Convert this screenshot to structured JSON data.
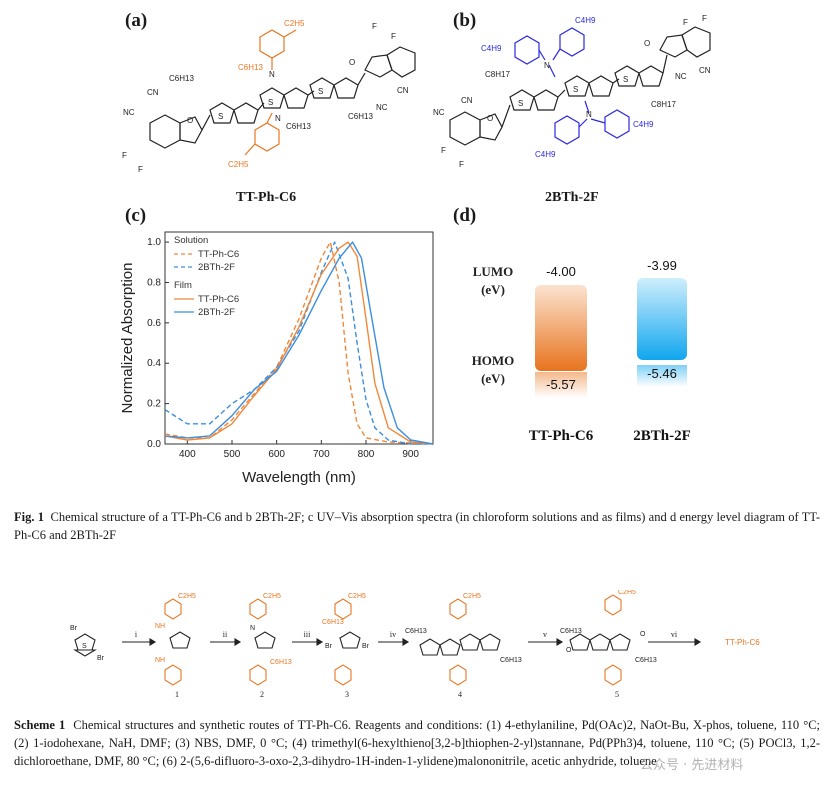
{
  "panel_a": {
    "label": "(a)",
    "molecule_name": "TT-Ph-C6",
    "atoms": {
      "c2h5": "C2H5",
      "c6h13": "C6H13",
      "n": "N",
      "s": "S",
      "o": "O",
      "f": "F",
      "cn": "CN",
      "nc": "NC"
    }
  },
  "panel_b": {
    "label": "(b)",
    "molecule_name": "2BTh-2F",
    "atoms": {
      "c4h9": "C4H9",
      "c8h17": "C8H17",
      "n": "N",
      "s": "S",
      "o": "O",
      "f": "F",
      "cn": "CN",
      "nc": "NC"
    }
  },
  "panel_c": {
    "label": "(c)",
    "legend": {
      "solution_title": "Solution",
      "film_title": "Film",
      "entries": [
        "TT-Ph-C6",
        "2BTh-2F",
        "TT-Ph-C6",
        "2BTh-2F"
      ]
    }
  },
  "panel_d": {
    "label": "(d)",
    "lumo_label": "LUMO",
    "homo_label": "HOMO",
    "unit": "(eV)",
    "materials": [
      {
        "name": "TT-Ph-C6",
        "lumo": "-4.00",
        "homo": "-5.57",
        "color": "#e87722"
      },
      {
        "name": "2BTh-2F",
        "lumo": "-3.99",
        "homo": "-5.46",
        "color": "#1aa7e8"
      }
    ]
  },
  "chart_data": {
    "type": "line",
    "title": "",
    "xlabel": "Wavelength (nm)",
    "ylabel": "Normalized Absorption",
    "xlim": [
      350,
      950
    ],
    "ylim": [
      0,
      1.05
    ],
    "xticks": [
      "400",
      "500",
      "600",
      "700",
      "800",
      "900"
    ],
    "yticks": [
      "0.0",
      "0.2",
      "0.4",
      "0.6",
      "0.8",
      "1.0"
    ],
    "series": [
      {
        "name": "TT-Ph-C6 (Solution)",
        "color": "#f0883a",
        "dash": true,
        "x": [
          350,
          400,
          450,
          500,
          550,
          600,
          650,
          700,
          720,
          740,
          760,
          780,
          800,
          850,
          950
        ],
        "y": [
          0.05,
          0.03,
          0.03,
          0.12,
          0.25,
          0.38,
          0.62,
          0.92,
          1.0,
          0.8,
          0.35,
          0.1,
          0.03,
          0.01,
          0.0
        ]
      },
      {
        "name": "2BTh-2F (Solution)",
        "color": "#3c8ee0",
        "dash": true,
        "x": [
          350,
          400,
          450,
          500,
          550,
          600,
          650,
          700,
          730,
          760,
          780,
          800,
          820,
          850,
          900,
          950
        ],
        "y": [
          0.17,
          0.1,
          0.1,
          0.2,
          0.27,
          0.38,
          0.56,
          0.85,
          1.0,
          0.82,
          0.5,
          0.22,
          0.08,
          0.02,
          0.0,
          0.0
        ]
      },
      {
        "name": "TT-Ph-C6 (Film)",
        "color": "#f0883a",
        "dash": false,
        "x": [
          350,
          400,
          450,
          500,
          550,
          600,
          650,
          700,
          740,
          760,
          780,
          800,
          820,
          850,
          900,
          950
        ],
        "y": [
          0.04,
          0.02,
          0.03,
          0.1,
          0.24,
          0.37,
          0.58,
          0.84,
          0.97,
          1.0,
          0.93,
          0.62,
          0.3,
          0.08,
          0.01,
          0.0
        ]
      },
      {
        "name": "2BTh-2F (Film)",
        "color": "#3c8ee0",
        "dash": false,
        "x": [
          350,
          400,
          450,
          500,
          550,
          600,
          650,
          700,
          740,
          770,
          790,
          810,
          840,
          870,
          900,
          950
        ],
        "y": [
          0.04,
          0.03,
          0.04,
          0.14,
          0.27,
          0.36,
          0.54,
          0.76,
          0.92,
          1.0,
          0.92,
          0.66,
          0.28,
          0.08,
          0.02,
          0.0
        ]
      }
    ]
  },
  "figure_caption": {
    "prefix": "Fig. 1",
    "text": "Chemical structure of a TT-Ph-C6 and b 2BTh-2F; c UV–Vis absorption spectra (in chloroform solutions and as films) and d energy level diagram of TT-Ph-C6 and 2BTh-2F"
  },
  "scheme": {
    "steps": [
      "i",
      "ii",
      "iii",
      "iv",
      "v",
      "vi"
    ],
    "compounds": [
      "1",
      "2",
      "3",
      "4",
      "5"
    ],
    "product": "TT-Ph-C6",
    "atoms": {
      "br": "Br",
      "nh": "NH",
      "n": "N",
      "c2h5": "C2H5",
      "c6h13": "C6H13",
      "s": "S",
      "o": "O"
    }
  },
  "scheme_caption": {
    "prefix": "Scheme 1",
    "text": "Chemical structures and synthetic routes of TT-Ph-C6. Reagents and conditions: (1) 4-ethylaniline, Pd(OAc)2, NaOt-Bu, X-phos, toluene, 110 °C; (2) 1-iodohexane, NaH, DMF; (3) NBS, DMF, 0 °C; (4) trimethyl(6-hexylthieno[3,2-b]thiophen-2-yl)stannane, Pd(PPh3)4, toluene, 110 °C; (5) POCl3, 1,2-dichloroethane, DMF, 80 °C; (6) 2-(5,6-difluoro-3-oxo-2,3-dihydro-1H-inden-1-ylidene)malononitrile, acetic anhydride, toluene"
  },
  "watermark": "公众号 · 先进材料"
}
